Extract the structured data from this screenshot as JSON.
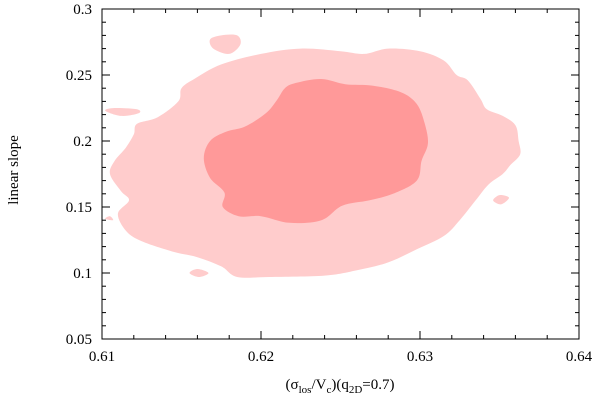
{
  "chart_data": {
    "type": "contour",
    "xlabel": {
      "base_open": "(σ",
      "sub1": "los",
      "mid": "/V",
      "sub2": "c",
      "mid2": ")(q",
      "sub3": "2D",
      "tail": "=0.7)"
    },
    "ylabel": "linear slope",
    "xlim": [
      0.61,
      0.64
    ],
    "ylim": [
      0.05,
      0.3
    ],
    "xticks": [
      0.61,
      0.62,
      0.63,
      0.64
    ],
    "xtick_labels": [
      "0.61",
      "0.62",
      "0.63",
      "0.64"
    ],
    "yticks": [
      0.05,
      0.1,
      0.15,
      0.2,
      0.25,
      0.3
    ],
    "ytick_labels": [
      "0.05",
      "0.1",
      "0.15",
      "0.2",
      "0.25",
      "0.3"
    ],
    "grid": false,
    "levels": [
      {
        "level": "outer",
        "color": "#ffcccc",
        "regions": [
          [
            [
              0.6108,
              0.185
            ],
            [
              0.6115,
              0.195
            ],
            [
              0.612,
              0.205
            ],
            [
              0.6122,
              0.213
            ],
            [
              0.6135,
              0.218
            ],
            [
              0.6148,
              0.23
            ],
            [
              0.615,
              0.24
            ],
            [
              0.6158,
              0.247
            ],
            [
              0.6175,
              0.258
            ],
            [
              0.62,
              0.266
            ],
            [
              0.6225,
              0.27
            ],
            [
              0.625,
              0.268
            ],
            [
              0.6265,
              0.266
            ],
            [
              0.628,
              0.27
            ],
            [
              0.63,
              0.268
            ],
            [
              0.6315,
              0.261
            ],
            [
              0.6323,
              0.25
            ],
            [
              0.633,
              0.246
            ],
            [
              0.6338,
              0.232
            ],
            [
              0.6342,
              0.224
            ],
            [
              0.6352,
              0.219
            ],
            [
              0.636,
              0.212
            ],
            [
              0.6362,
              0.2
            ],
            [
              0.6363,
              0.19
            ],
            [
              0.6357,
              0.182
            ],
            [
              0.6352,
              0.175
            ],
            [
              0.6343,
              0.167
            ],
            [
              0.6335,
              0.155
            ],
            [
              0.6325,
              0.14
            ],
            [
              0.6315,
              0.128
            ],
            [
              0.6298,
              0.118
            ],
            [
              0.628,
              0.108
            ],
            [
              0.626,
              0.102
            ],
            [
              0.624,
              0.098
            ],
            [
              0.6205,
              0.097
            ],
            [
              0.6185,
              0.097
            ],
            [
              0.6175,
              0.105
            ],
            [
              0.616,
              0.112
            ],
            [
              0.6145,
              0.116
            ],
            [
              0.6125,
              0.124
            ],
            [
              0.6115,
              0.132
            ],
            [
              0.611,
              0.145
            ],
            [
              0.6117,
              0.155
            ],
            [
              0.6112,
              0.162
            ],
            [
              0.6105,
              0.175
            ]
          ],
          [
            [
              0.6168,
              0.277
            ],
            [
              0.6175,
              0.28
            ],
            [
              0.6185,
              0.28
            ],
            [
              0.6187,
              0.273
            ],
            [
              0.618,
              0.266
            ],
            [
              0.617,
              0.27
            ]
          ],
          [
            [
              0.6102,
              0.223
            ],
            [
              0.6108,
              0.225
            ],
            [
              0.6122,
              0.224
            ],
            [
              0.6123,
              0.221
            ],
            [
              0.6112,
              0.219
            ]
          ],
          [
            [
              0.6155,
              0.1
            ],
            [
              0.616,
              0.103
            ],
            [
              0.6167,
              0.1
            ],
            [
              0.6161,
              0.097
            ]
          ],
          [
            [
              0.6346,
              0.155
            ],
            [
              0.635,
              0.159
            ],
            [
              0.6356,
              0.157
            ],
            [
              0.6351,
              0.152
            ]
          ],
          [
            [
              0.6102,
              0.141
            ],
            [
              0.6105,
              0.143
            ],
            [
              0.6107,
              0.14
            ]
          ]
        ]
      },
      {
        "level": "inner",
        "color": "#ff9999",
        "regions": [
          [
            [
              0.6164,
              0.187
            ],
            [
              0.6168,
              0.2
            ],
            [
              0.6178,
              0.207
            ],
            [
              0.619,
              0.211
            ],
            [
              0.6203,
              0.221
            ],
            [
              0.621,
              0.231
            ],
            [
              0.6215,
              0.24
            ],
            [
              0.6222,
              0.244
            ],
            [
              0.6238,
              0.247
            ],
            [
              0.6253,
              0.243
            ],
            [
              0.627,
              0.242
            ],
            [
              0.6288,
              0.237
            ],
            [
              0.6298,
              0.228
            ],
            [
              0.6303,
              0.213
            ],
            [
              0.6305,
              0.198
            ],
            [
              0.6301,
              0.185
            ],
            [
              0.6298,
              0.17
            ],
            [
              0.6283,
              0.16
            ],
            [
              0.6268,
              0.155
            ],
            [
              0.6251,
              0.151
            ],
            [
              0.6238,
              0.14
            ],
            [
              0.6218,
              0.138
            ],
            [
              0.62,
              0.143
            ],
            [
              0.6186,
              0.143
            ],
            [
              0.6176,
              0.15
            ],
            [
              0.6177,
              0.161
            ],
            [
              0.6168,
              0.172
            ]
          ]
        ]
      }
    ]
  }
}
